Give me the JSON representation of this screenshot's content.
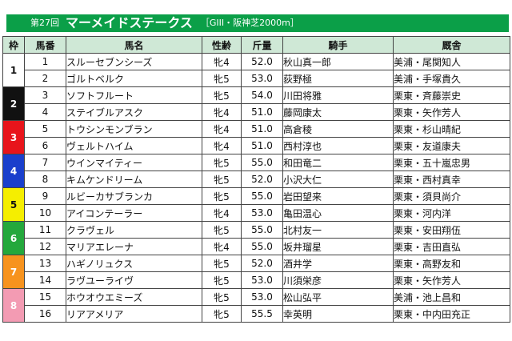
{
  "header": {
    "edition": "第27回",
    "race_name": "マーメイドステークス",
    "detail": "［GIII・阪神芝2000m］"
  },
  "columns": [
    "枠",
    "馬番",
    "馬名",
    "性齢",
    "斤量",
    "騎手",
    "厩舎"
  ],
  "colors": {
    "header_green": "#0b9f48",
    "column_header_bg": "#cfe8d6"
  },
  "waku": [
    {
      "label": "1",
      "bg": "#ffffff",
      "fg": "#111111"
    },
    {
      "label": "2",
      "bg": "#111111",
      "fg": "#ffffff"
    },
    {
      "label": "3",
      "bg": "#e8141b",
      "fg": "#ffffff"
    },
    {
      "label": "4",
      "bg": "#1a3fcc",
      "fg": "#ffffff"
    },
    {
      "label": "5",
      "bg": "#f5ee00",
      "fg": "#111111"
    },
    {
      "label": "6",
      "bg": "#24a83c",
      "fg": "#ffffff"
    },
    {
      "label": "7",
      "bg": "#f7931e",
      "fg": "#ffffff"
    },
    {
      "label": "8",
      "bg": "#f39bb3",
      "fg": "#ffffff"
    }
  ],
  "entries": [
    {
      "num": "1",
      "horse": "スルーセブンシーズ",
      "sex_age": "牝4",
      "weight": "52.0",
      "jockey": "秋山真一郎",
      "trainer": "美浦・尾関知人"
    },
    {
      "num": "2",
      "horse": "ゴルトベルク",
      "sex_age": "牝5",
      "weight": "53.0",
      "jockey": "荻野極",
      "trainer": "美浦・手塚貴久"
    },
    {
      "num": "3",
      "horse": "ソフトフルート",
      "sex_age": "牝5",
      "weight": "54.0",
      "jockey": "川田将雅",
      "trainer": "栗東・斉藤崇史"
    },
    {
      "num": "4",
      "horse": "ステイブルアスク",
      "sex_age": "牝4",
      "weight": "51.0",
      "jockey": "藤岡康太",
      "trainer": "栗東・矢作芳人"
    },
    {
      "num": "5",
      "horse": "トウシンモンブラン",
      "sex_age": "牝4",
      "weight": "51.0",
      "jockey": "高倉稜",
      "trainer": "栗東・杉山晴紀"
    },
    {
      "num": "6",
      "horse": "ヴェルトハイム",
      "sex_age": "牝4",
      "weight": "51.0",
      "jockey": "西村淳也",
      "trainer": "栗東・友道康夫"
    },
    {
      "num": "7",
      "horse": "ウインマイティー",
      "sex_age": "牝5",
      "weight": "55.0",
      "jockey": "和田竜二",
      "trainer": "栗東・五十嵐忠男"
    },
    {
      "num": "8",
      "horse": "キムケンドリーム",
      "sex_age": "牝5",
      "weight": "52.0",
      "jockey": "小沢大仁",
      "trainer": "栗東・西村真幸"
    },
    {
      "num": "9",
      "horse": "ルビーカサブランカ",
      "sex_age": "牝5",
      "weight": "55.0",
      "jockey": "岩田望来",
      "trainer": "栗東・須貝尚介"
    },
    {
      "num": "10",
      "horse": "アイコンテーラー",
      "sex_age": "牝4",
      "weight": "53.0",
      "jockey": "亀田温心",
      "trainer": "栗東・河内洋"
    },
    {
      "num": "11",
      "horse": "クラヴェル",
      "sex_age": "牝5",
      "weight": "55.0",
      "jockey": "北村友一",
      "trainer": "栗東・安田翔伍"
    },
    {
      "num": "12",
      "horse": "マリアエレーナ",
      "sex_age": "牝4",
      "weight": "55.0",
      "jockey": "坂井瑠星",
      "trainer": "栗東・吉田直弘"
    },
    {
      "num": "13",
      "horse": "ハギノリュクス",
      "sex_age": "牝5",
      "weight": "52.0",
      "jockey": "酒井学",
      "trainer": "栗東・高野友和"
    },
    {
      "num": "14",
      "horse": "ラヴユーライヴ",
      "sex_age": "牝5",
      "weight": "53.0",
      "jockey": "川須栄彦",
      "trainer": "栗東・矢作芳人"
    },
    {
      "num": "15",
      "horse": "ホウオウエミーズ",
      "sex_age": "牝5",
      "weight": "53.0",
      "jockey": "松山弘平",
      "trainer": "美浦・池上昌和"
    },
    {
      "num": "16",
      "horse": "リアアメリア",
      "sex_age": "牝5",
      "weight": "55.5",
      "jockey": "幸英明",
      "trainer": "栗東・中内田充正"
    }
  ]
}
